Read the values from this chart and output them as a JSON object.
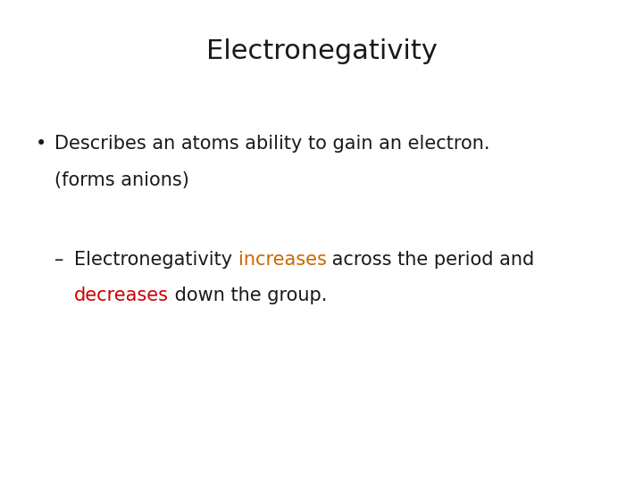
{
  "title": "Electronegativity",
  "title_fontsize": 22,
  "title_color": "#1a1a1a",
  "background_color": "#ffffff",
  "bullet1_line1": "Describes an atoms ability to gain an electron.",
  "bullet1_line2": "(forms anions)",
  "bullet1_color": "#1a1a1a",
  "bullet1_fontsize": 15,
  "sub_bullet_color": "#1a1a1a",
  "sub_bullet_fontsize": 15,
  "increases_color": "#cc6600",
  "decreases_color": "#cc0000",
  "sub_text_normal_weight": "normal",
  "sub_text_colored_weight": "normal"
}
